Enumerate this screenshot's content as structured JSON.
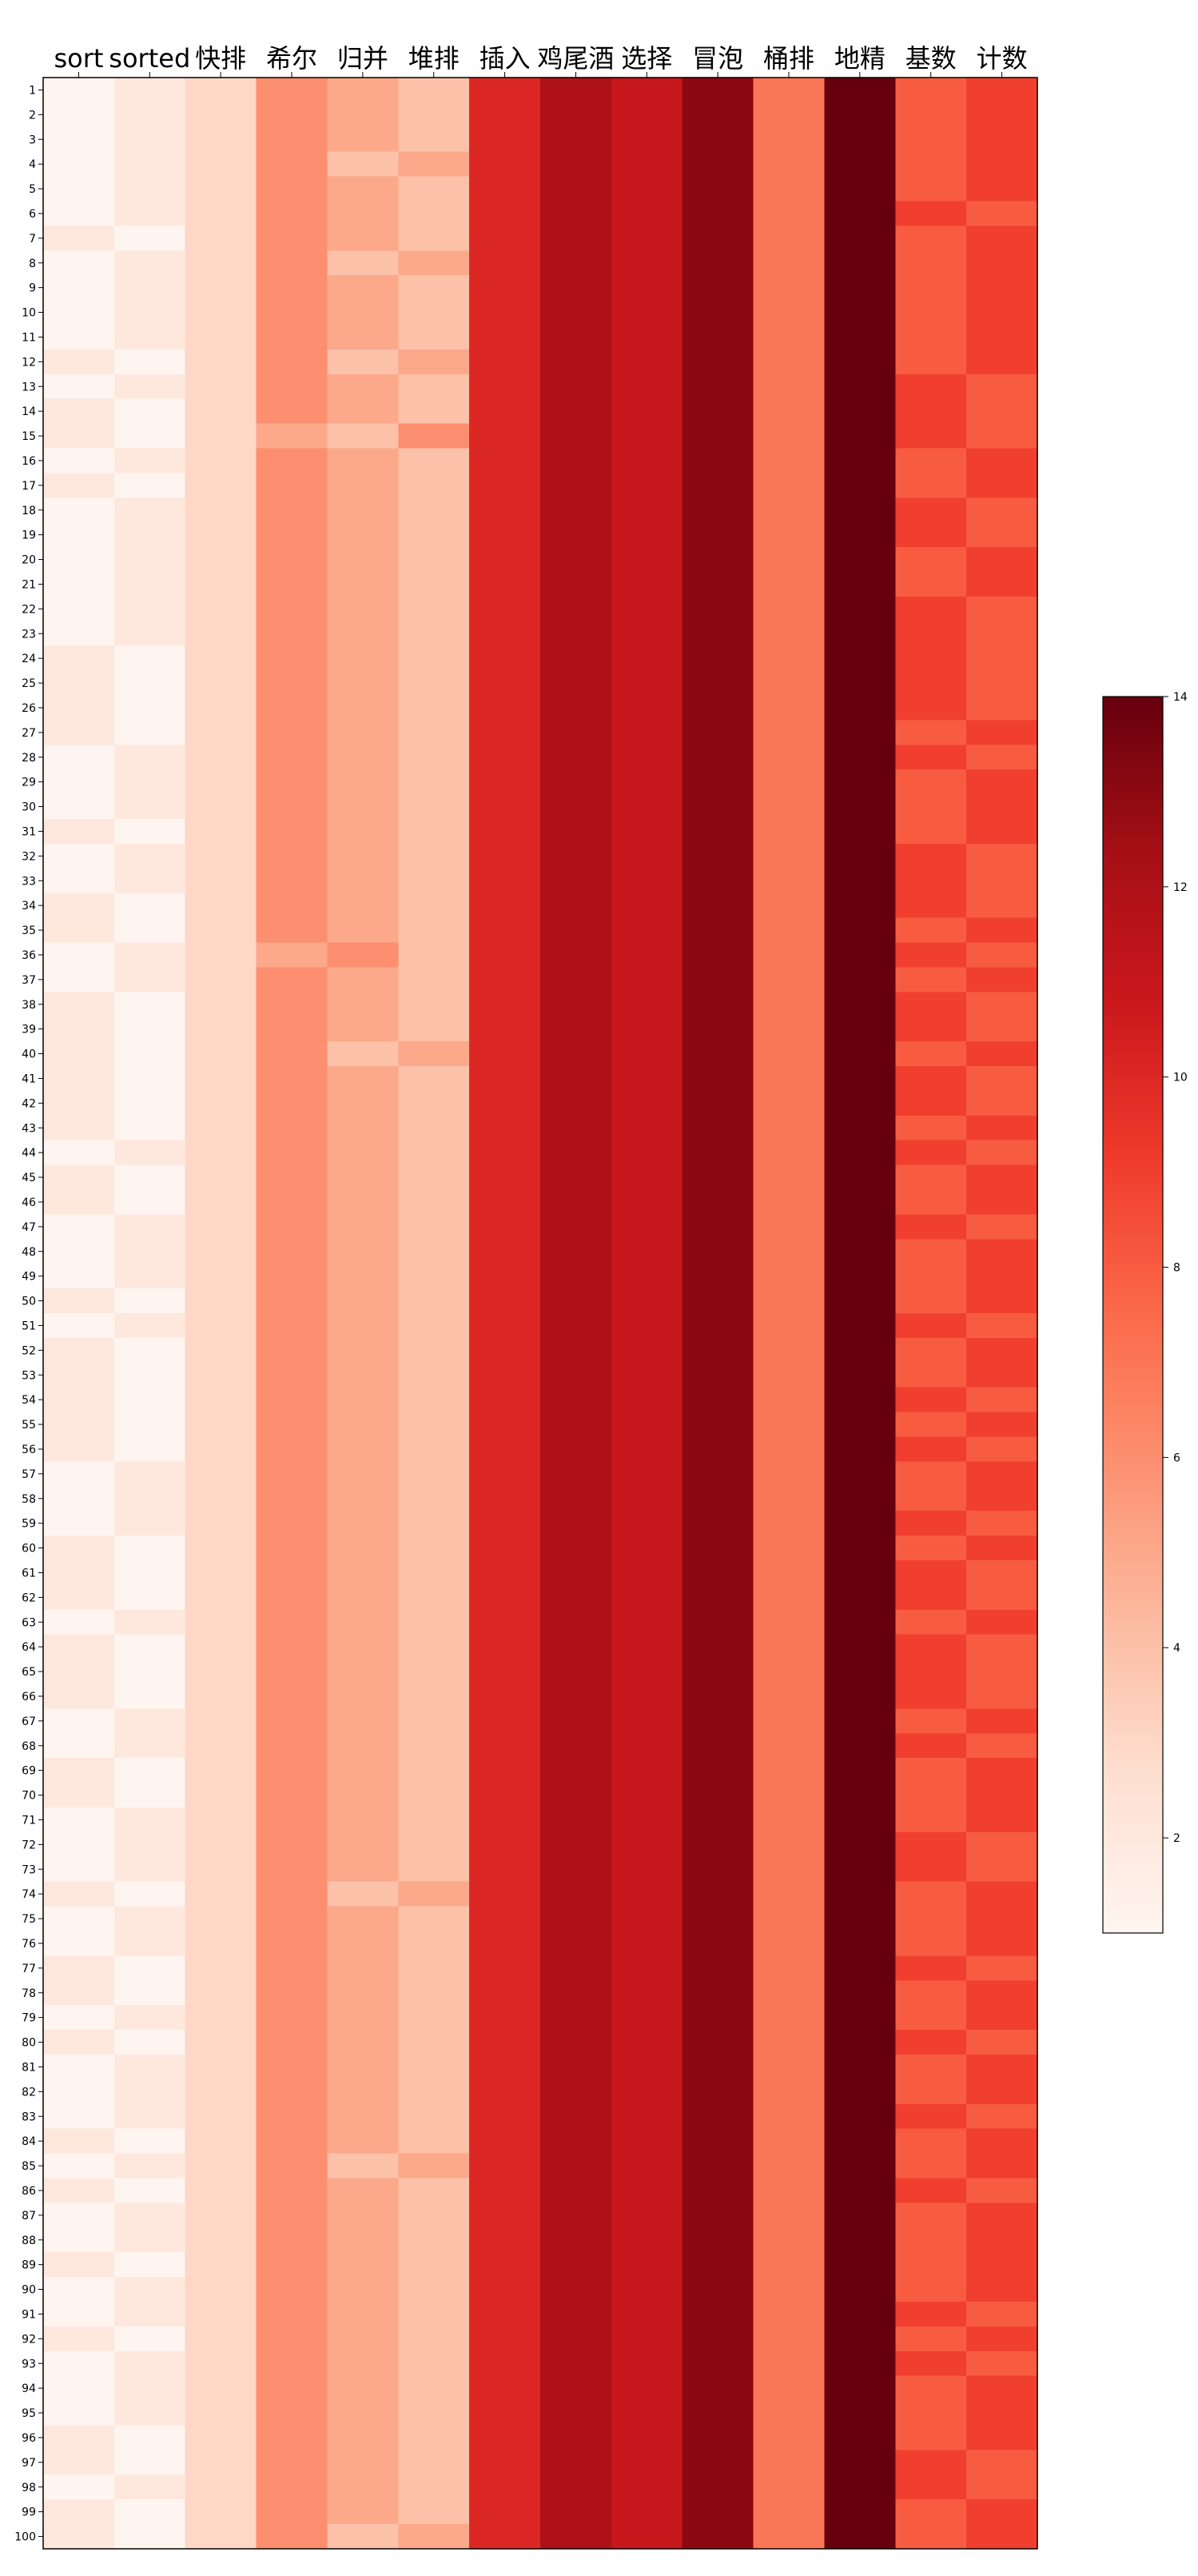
{
  "chart_data": {
    "type": "heatmap",
    "title": "",
    "xlabel": "",
    "ylabel": "",
    "columns": [
      "sort",
      "sorted",
      "快排",
      "希尔",
      "归并",
      "堆排",
      "插入",
      "鸡尾酒",
      "选择",
      "冒泡",
      "桶排",
      "地精",
      "基数",
      "计数"
    ],
    "rows": [
      "1",
      "2",
      "3",
      "4",
      "5",
      "6",
      "7",
      "8",
      "9",
      "10",
      "11",
      "12",
      "13",
      "14",
      "15",
      "16",
      "17",
      "18",
      "19",
      "20",
      "21",
      "22",
      "23",
      "24",
      "25",
      "26",
      "27",
      "28",
      "29",
      "30",
      "31",
      "32",
      "33",
      "34",
      "35",
      "36",
      "37",
      "38",
      "39",
      "40",
      "41",
      "42",
      "43",
      "44",
      "45",
      "46",
      "47",
      "48",
      "49",
      "50",
      "51",
      "52",
      "53",
      "54",
      "55",
      "56",
      "57",
      "58",
      "59",
      "60",
      "61",
      "62",
      "63",
      "64",
      "65",
      "66",
      "67",
      "68",
      "69",
      "70",
      "71",
      "72",
      "73",
      "74",
      "75",
      "76",
      "77",
      "78",
      "79",
      "80",
      "81",
      "82",
      "83",
      "84",
      "85",
      "86",
      "87",
      "88",
      "89",
      "90",
      "91",
      "92",
      "93",
      "94",
      "95",
      "96",
      "97",
      "98",
      "99",
      "100"
    ],
    "values": [
      [
        1,
        2,
        3,
        6,
        5,
        4,
        10,
        12,
        11,
        13,
        7,
        14,
        8,
        9
      ],
      [
        1,
        2,
        3,
        6,
        5,
        4,
        10,
        12,
        11,
        13,
        7,
        14,
        8,
        9
      ],
      [
        1,
        2,
        3,
        6,
        5,
        4,
        10,
        12,
        11,
        13,
        7,
        14,
        8,
        9
      ],
      [
        1,
        2,
        3,
        6,
        4,
        5,
        10,
        12,
        11,
        13,
        7,
        14,
        8,
        9
      ],
      [
        1,
        2,
        3,
        6,
        5,
        4,
        10,
        12,
        11,
        13,
        7,
        14,
        8,
        9
      ],
      [
        1,
        2,
        3,
        6,
        5,
        4,
        10,
        12,
        11,
        13,
        7,
        14,
        9,
        8
      ],
      [
        2,
        1,
        3,
        6,
        5,
        4,
        10,
        12,
        11,
        13,
        7,
        14,
        8,
        9
      ],
      [
        1,
        2,
        3,
        6,
        4,
        5,
        10,
        12,
        11,
        13,
        7,
        14,
        8,
        9
      ],
      [
        1,
        2,
        3,
        6,
        5,
        4,
        10,
        12,
        11,
        13,
        7,
        14,
        8,
        9
      ],
      [
        1,
        2,
        3,
        6,
        5,
        4,
        10,
        12,
        11,
        13,
        7,
        14,
        8,
        9
      ],
      [
        1,
        2,
        3,
        6,
        5,
        4,
        10,
        12,
        11,
        13,
        7,
        14,
        8,
        9
      ],
      [
        2,
        1,
        3,
        6,
        4,
        5,
        10,
        12,
        11,
        13,
        7,
        14,
        8,
        9
      ],
      [
        1,
        2,
        3,
        6,
        5,
        4,
        10,
        12,
        11,
        13,
        7,
        14,
        9,
        8
      ],
      [
        2,
        1,
        3,
        6,
        5,
        4,
        10,
        12,
        11,
        13,
        7,
        14,
        9,
        8
      ],
      [
        2,
        1,
        3,
        5,
        4,
        6,
        10,
        12,
        11,
        13,
        7,
        14,
        9,
        8
      ],
      [
        1,
        2,
        3,
        6,
        5,
        4,
        10,
        12,
        11,
        13,
        7,
        14,
        8,
        9
      ],
      [
        2,
        1,
        3,
        6,
        5,
        4,
        10,
        12,
        11,
        13,
        7,
        14,
        8,
        9
      ],
      [
        1,
        2,
        3,
        6,
        5,
        4,
        10,
        12,
        11,
        13,
        7,
        14,
        9,
        8
      ],
      [
        1,
        2,
        3,
        6,
        5,
        4,
        10,
        12,
        11,
        13,
        7,
        14,
        9,
        8
      ],
      [
        1,
        2,
        3,
        6,
        5,
        4,
        10,
        12,
        11,
        13,
        7,
        14,
        8,
        9
      ],
      [
        1,
        2,
        3,
        6,
        5,
        4,
        10,
        12,
        11,
        13,
        7,
        14,
        8,
        9
      ],
      [
        1,
        2,
        3,
        6,
        5,
        4,
        10,
        12,
        11,
        13,
        7,
        14,
        9,
        8
      ],
      [
        1,
        2,
        3,
        6,
        5,
        4,
        10,
        12,
        11,
        13,
        7,
        14,
        9,
        8
      ],
      [
        2,
        1,
        3,
        6,
        5,
        4,
        10,
        12,
        11,
        13,
        7,
        14,
        9,
        8
      ],
      [
        2,
        1,
        3,
        6,
        5,
        4,
        10,
        12,
        11,
        13,
        7,
        14,
        9,
        8
      ],
      [
        2,
        1,
        3,
        6,
        5,
        4,
        10,
        12,
        11,
        13,
        7,
        14,
        9,
        8
      ],
      [
        2,
        1,
        3,
        6,
        5,
        4,
        10,
        12,
        11,
        13,
        7,
        14,
        8,
        9
      ],
      [
        1,
        2,
        3,
        6,
        5,
        4,
        10,
        12,
        11,
        13,
        7,
        14,
        9,
        8
      ],
      [
        1,
        2,
        3,
        6,
        5,
        4,
        10,
        12,
        11,
        13,
        7,
        14,
        8,
        9
      ],
      [
        1,
        2,
        3,
        6,
        5,
        4,
        10,
        12,
        11,
        13,
        7,
        14,
        8,
        9
      ],
      [
        2,
        1,
        3,
        6,
        5,
        4,
        10,
        12,
        11,
        13,
        7,
        14,
        8,
        9
      ],
      [
        1,
        2,
        3,
        6,
        5,
        4,
        10,
        12,
        11,
        13,
        7,
        14,
        9,
        8
      ],
      [
        1,
        2,
        3,
        6,
        5,
        4,
        10,
        12,
        11,
        13,
        7,
        14,
        9,
        8
      ],
      [
        2,
        1,
        3,
        6,
        5,
        4,
        10,
        12,
        11,
        13,
        7,
        14,
        9,
        8
      ],
      [
        2,
        1,
        3,
        6,
        5,
        4,
        10,
        12,
        11,
        13,
        7,
        14,
        8,
        9
      ],
      [
        1,
        2,
        3,
        5,
        6,
        4,
        10,
        12,
        11,
        13,
        7,
        14,
        9,
        8
      ],
      [
        1,
        2,
        3,
        6,
        5,
        4,
        10,
        12,
        11,
        13,
        7,
        14,
        8,
        9
      ],
      [
        2,
        1,
        3,
        6,
        5,
        4,
        10,
        12,
        11,
        13,
        7,
        14,
        9,
        8
      ],
      [
        2,
        1,
        3,
        6,
        5,
        4,
        10,
        12,
        11,
        13,
        7,
        14,
        9,
        8
      ],
      [
        2,
        1,
        3,
        6,
        4,
        5,
        10,
        12,
        11,
        13,
        7,
        14,
        8,
        9
      ],
      [
        2,
        1,
        3,
        6,
        5,
        4,
        10,
        12,
        11,
        13,
        7,
        14,
        9,
        8
      ],
      [
        2,
        1,
        3,
        6,
        5,
        4,
        10,
        12,
        11,
        13,
        7,
        14,
        9,
        8
      ],
      [
        2,
        1,
        3,
        6,
        5,
        4,
        10,
        12,
        11,
        13,
        7,
        14,
        8,
        9
      ],
      [
        1,
        2,
        3,
        6,
        5,
        4,
        10,
        12,
        11,
        13,
        7,
        14,
        9,
        8
      ],
      [
        2,
        1,
        3,
        6,
        5,
        4,
        10,
        12,
        11,
        13,
        7,
        14,
        8,
        9
      ],
      [
        2,
        1,
        3,
        6,
        5,
        4,
        10,
        12,
        11,
        13,
        7,
        14,
        8,
        9
      ],
      [
        1,
        2,
        3,
        6,
        5,
        4,
        10,
        12,
        11,
        13,
        7,
        14,
        9,
        8
      ],
      [
        1,
        2,
        3,
        6,
        5,
        4,
        10,
        12,
        11,
        13,
        7,
        14,
        8,
        9
      ],
      [
        1,
        2,
        3,
        6,
        5,
        4,
        10,
        12,
        11,
        13,
        7,
        14,
        8,
        9
      ],
      [
        2,
        1,
        3,
        6,
        5,
        4,
        10,
        12,
        11,
        13,
        7,
        14,
        8,
        9
      ],
      [
        1,
        2,
        3,
        6,
        5,
        4,
        10,
        12,
        11,
        13,
        7,
        14,
        9,
        8
      ],
      [
        2,
        1,
        3,
        6,
        5,
        4,
        10,
        12,
        11,
        13,
        7,
        14,
        8,
        9
      ],
      [
        2,
        1,
        3,
        6,
        5,
        4,
        10,
        12,
        11,
        13,
        7,
        14,
        8,
        9
      ],
      [
        2,
        1,
        3,
        6,
        5,
        4,
        10,
        12,
        11,
        13,
        7,
        14,
        9,
        8
      ],
      [
        2,
        1,
        3,
        6,
        5,
        4,
        10,
        12,
        11,
        13,
        7,
        14,
        8,
        9
      ],
      [
        2,
        1,
        3,
        6,
        5,
        4,
        10,
        12,
        11,
        13,
        7,
        14,
        9,
        8
      ],
      [
        1,
        2,
        3,
        6,
        5,
        4,
        10,
        12,
        11,
        13,
        7,
        14,
        8,
        9
      ],
      [
        1,
        2,
        3,
        6,
        5,
        4,
        10,
        12,
        11,
        13,
        7,
        14,
        8,
        9
      ],
      [
        1,
        2,
        3,
        6,
        5,
        4,
        10,
        12,
        11,
        13,
        7,
        14,
        9,
        8
      ],
      [
        2,
        1,
        3,
        6,
        5,
        4,
        10,
        12,
        11,
        13,
        7,
        14,
        8,
        9
      ],
      [
        2,
        1,
        3,
        6,
        5,
        4,
        10,
        12,
        11,
        13,
        7,
        14,
        9,
        8
      ],
      [
        2,
        1,
        3,
        6,
        5,
        4,
        10,
        12,
        11,
        13,
        7,
        14,
        9,
        8
      ],
      [
        1,
        2,
        3,
        6,
        5,
        4,
        10,
        12,
        11,
        13,
        7,
        14,
        8,
        9
      ],
      [
        2,
        1,
        3,
        6,
        5,
        4,
        10,
        12,
        11,
        13,
        7,
        14,
        9,
        8
      ],
      [
        2,
        1,
        3,
        6,
        5,
        4,
        10,
        12,
        11,
        13,
        7,
        14,
        9,
        8
      ],
      [
        2,
        1,
        3,
        6,
        5,
        4,
        10,
        12,
        11,
        13,
        7,
        14,
        9,
        8
      ],
      [
        1,
        2,
        3,
        6,
        5,
        4,
        10,
        12,
        11,
        13,
        7,
        14,
        8,
        9
      ],
      [
        1,
        2,
        3,
        6,
        5,
        4,
        10,
        12,
        11,
        13,
        7,
        14,
        9,
        8
      ],
      [
        2,
        1,
        3,
        6,
        5,
        4,
        10,
        12,
        11,
        13,
        7,
        14,
        8,
        9
      ],
      [
        2,
        1,
        3,
        6,
        5,
        4,
        10,
        12,
        11,
        13,
        7,
        14,
        8,
        9
      ],
      [
        1,
        2,
        3,
        6,
        5,
        4,
        10,
        12,
        11,
        13,
        7,
        14,
        8,
        9
      ],
      [
        1,
        2,
        3,
        6,
        5,
        4,
        10,
        12,
        11,
        13,
        7,
        14,
        9,
        8
      ],
      [
        1,
        2,
        3,
        6,
        5,
        4,
        10,
        12,
        11,
        13,
        7,
        14,
        9,
        8
      ],
      [
        2,
        1,
        3,
        6,
        4,
        5,
        10,
        12,
        11,
        13,
        7,
        14,
        8,
        9
      ],
      [
        1,
        2,
        3,
        6,
        5,
        4,
        10,
        12,
        11,
        13,
        7,
        14,
        8,
        9
      ],
      [
        1,
        2,
        3,
        6,
        5,
        4,
        10,
        12,
        11,
        13,
        7,
        14,
        8,
        9
      ],
      [
        2,
        1,
        3,
        6,
        5,
        4,
        10,
        12,
        11,
        13,
        7,
        14,
        9,
        8
      ],
      [
        2,
        1,
        3,
        6,
        5,
        4,
        10,
        12,
        11,
        13,
        7,
        14,
        8,
        9
      ],
      [
        1,
        2,
        3,
        6,
        5,
        4,
        10,
        12,
        11,
        13,
        7,
        14,
        8,
        9
      ],
      [
        2,
        1,
        3,
        6,
        5,
        4,
        10,
        12,
        11,
        13,
        7,
        14,
        9,
        8
      ],
      [
        1,
        2,
        3,
        6,
        5,
        4,
        10,
        12,
        11,
        13,
        7,
        14,
        8,
        9
      ],
      [
        1,
        2,
        3,
        6,
        5,
        4,
        10,
        12,
        11,
        13,
        7,
        14,
        8,
        9
      ],
      [
        1,
        2,
        3,
        6,
        5,
        4,
        10,
        12,
        11,
        13,
        7,
        14,
        9,
        8
      ],
      [
        2,
        1,
        3,
        6,
        5,
        4,
        10,
        12,
        11,
        13,
        7,
        14,
        8,
        9
      ],
      [
        1,
        2,
        3,
        6,
        4,
        5,
        10,
        12,
        11,
        13,
        7,
        14,
        8,
        9
      ],
      [
        2,
        1,
        3,
        6,
        5,
        4,
        10,
        12,
        11,
        13,
        7,
        14,
        9,
        8
      ],
      [
        1,
        2,
        3,
        6,
        5,
        4,
        10,
        12,
        11,
        13,
        7,
        14,
        8,
        9
      ],
      [
        1,
        2,
        3,
        6,
        5,
        4,
        10,
        12,
        11,
        13,
        7,
        14,
        8,
        9
      ],
      [
        2,
        1,
        3,
        6,
        5,
        4,
        10,
        12,
        11,
        13,
        7,
        14,
        8,
        9
      ],
      [
        1,
        2,
        3,
        6,
        5,
        4,
        10,
        12,
        11,
        13,
        7,
        14,
        8,
        9
      ],
      [
        1,
        2,
        3,
        6,
        5,
        4,
        10,
        12,
        11,
        13,
        7,
        14,
        9,
        8
      ],
      [
        2,
        1,
        3,
        6,
        5,
        4,
        10,
        12,
        11,
        13,
        7,
        14,
        8,
        9
      ],
      [
        1,
        2,
        3,
        6,
        5,
        4,
        10,
        12,
        11,
        13,
        7,
        14,
        9,
        8
      ],
      [
        1,
        2,
        3,
        6,
        5,
        4,
        10,
        12,
        11,
        13,
        7,
        14,
        8,
        9
      ],
      [
        1,
        2,
        3,
        6,
        5,
        4,
        10,
        12,
        11,
        13,
        7,
        14,
        8,
        9
      ],
      [
        2,
        1,
        3,
        6,
        5,
        4,
        10,
        12,
        11,
        13,
        7,
        14,
        8,
        9
      ],
      [
        2,
        1,
        3,
        6,
        5,
        4,
        10,
        12,
        11,
        13,
        7,
        14,
        9,
        8
      ],
      [
        1,
        2,
        3,
        6,
        5,
        4,
        10,
        12,
        11,
        13,
        7,
        14,
        9,
        8
      ],
      [
        2,
        1,
        3,
        6,
        5,
        4,
        10,
        12,
        11,
        13,
        7,
        14,
        8,
        9
      ],
      [
        2,
        1,
        3,
        6,
        4,
        5,
        10,
        12,
        11,
        13,
        7,
        14,
        8,
        9
      ]
    ],
    "colorbar": {
      "min": 1,
      "max": 14,
      "ticks": [
        "2",
        "4",
        "6",
        "8",
        "10",
        "12",
        "14"
      ],
      "colormap": "Reds",
      "stops": [
        "#fff5f0",
        "#fee0d2",
        "#fcbba1",
        "#fc9272",
        "#fb6a4a",
        "#ef3b2c",
        "#cb181d",
        "#a50f15",
        "#67000d"
      ]
    },
    "grid": false
  }
}
